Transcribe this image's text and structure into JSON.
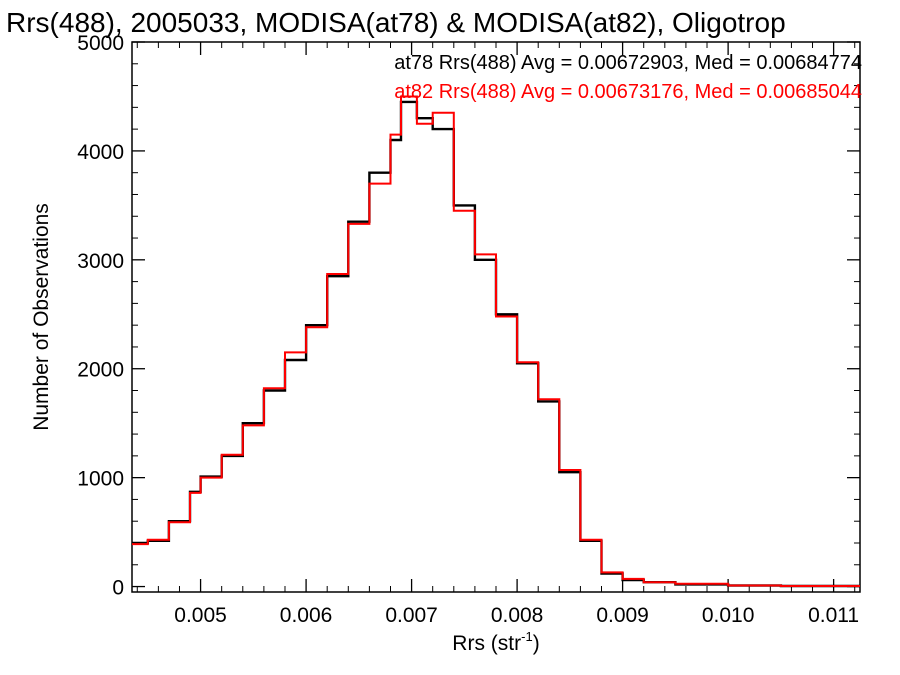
{
  "chart_data": {
    "type": "line",
    "title": "Rrs(488), 2005033, MODISA(at78) & MODISA(at82), Oligotrop",
    "xlabel": "Rrs (str",
    "xlabel_sup": "-1",
    "xlabel_close": ")",
    "ylabel": "Number of Observations",
    "xlim": [
      0.00435,
      0.01125
    ],
    "ylim": [
      -50,
      5000
    ],
    "xticks": [
      0.005,
      0.006,
      0.007,
      0.008,
      0.009,
      0.01,
      0.011
    ],
    "xtick_labels": [
      "0.005",
      "0.006",
      "0.007",
      "0.008",
      "0.009",
      "0.010",
      "0.011"
    ],
    "yticks": [
      0,
      1000,
      2000,
      3000,
      4000,
      5000
    ],
    "ytick_labels": [
      "0",
      "1000",
      "2000",
      "3000",
      "4000",
      "5000"
    ],
    "grid": false,
    "legend_position": "top-right",
    "step": true,
    "series": [
      {
        "name": "at78 Rrs(488) Avg = 0.00672903, Med = 0.00684774",
        "color": "#000000",
        "x": [
          0.00435,
          0.0045,
          0.0047,
          0.0049,
          0.005,
          0.0052,
          0.0054,
          0.0056,
          0.0058,
          0.006,
          0.0062,
          0.0064,
          0.0066,
          0.0068,
          0.0069,
          0.00705,
          0.0072,
          0.0074,
          0.0076,
          0.0078,
          0.008,
          0.0082,
          0.0084,
          0.0086,
          0.0088,
          0.009,
          0.0092,
          0.0095,
          0.01,
          0.0105,
          0.011,
          0.01125
        ],
        "y": [
          400,
          420,
          600,
          870,
          1010,
          1200,
          1500,
          1800,
          2080,
          2400,
          2850,
          3350,
          3800,
          4100,
          4450,
          4300,
          4200,
          3500,
          3000,
          2500,
          2050,
          1700,
          1050,
          420,
          120,
          60,
          40,
          20,
          10,
          5,
          5,
          5
        ]
      },
      {
        "name": "at82 Rrs(488) Avg = 0.00673176, Med = 0.00685044",
        "color": "#ff0000",
        "x": [
          0.00435,
          0.0045,
          0.0047,
          0.0049,
          0.005,
          0.0052,
          0.0054,
          0.0056,
          0.0058,
          0.006,
          0.0062,
          0.0064,
          0.0066,
          0.0068,
          0.0069,
          0.00705,
          0.0072,
          0.0074,
          0.0076,
          0.0078,
          0.008,
          0.0082,
          0.0084,
          0.0086,
          0.0088,
          0.009,
          0.0092,
          0.0095,
          0.01,
          0.0105,
          0.011,
          0.01125
        ],
        "y": [
          390,
          430,
          590,
          860,
          1000,
          1210,
          1480,
          1820,
          2150,
          2380,
          2870,
          3330,
          3700,
          4150,
          4500,
          4250,
          4350,
          3450,
          3050,
          2480,
          2060,
          1720,
          1070,
          430,
          130,
          70,
          40,
          25,
          10,
          5,
          5,
          5
        ]
      }
    ]
  }
}
